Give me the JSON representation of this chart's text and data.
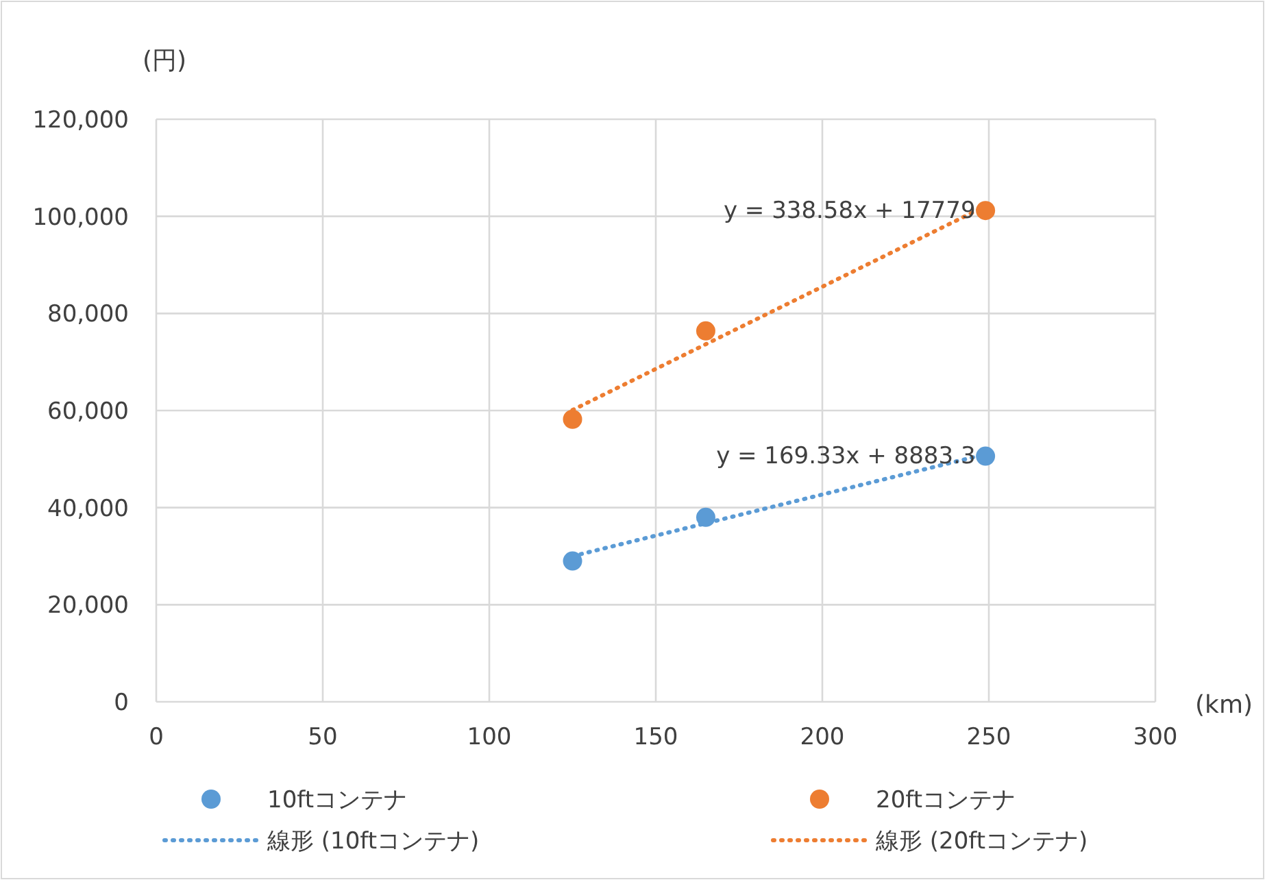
{
  "chart_data": {
    "type": "scatter",
    "xlabel": "(km)",
    "ylabel": "(円)",
    "xlim": [
      0,
      300
    ],
    "ylim": [
      0,
      120000
    ],
    "xticks": [
      0,
      50,
      100,
      150,
      200,
      250,
      300
    ],
    "yticks": [
      {
        "value": 0,
        "label": "0"
      },
      {
        "value": 20000,
        "label": "20,000"
      },
      {
        "value": 40000,
        "label": "40,000"
      },
      {
        "value": 60000,
        "label": "60,000"
      },
      {
        "value": 80000,
        "label": "80,000"
      },
      {
        "value": 100000,
        "label": "100,000"
      },
      {
        "value": 120000,
        "label": "120,000"
      }
    ],
    "grid": true,
    "legend": "bottom",
    "series": [
      {
        "name": "10ftコンテナ",
        "marker": "circle",
        "color": "#5b9bd5",
        "x": [
          125,
          165,
          249
        ],
        "values": [
          29000,
          38000,
          50600
        ]
      },
      {
        "name": "20ftコンテナ",
        "marker": "circle",
        "color": "#ed7d31",
        "x": [
          125,
          165,
          249
        ],
        "values": [
          58200,
          76400,
          101200
        ]
      },
      {
        "name": "線形 (10ftコンテナ)",
        "type": "line",
        "line_style": "dotted",
        "color": "#5b9bd5",
        "x": [
          125,
          249
        ],
        "values": [
          30000,
          51000
        ]
      },
      {
        "name": "線形 (20ftコンテナ)",
        "type": "line",
        "line_style": "dotted",
        "color": "#ed7d31",
        "x": [
          125,
          249
        ],
        "values": [
          60100,
          102100
        ]
      }
    ],
    "annotations": [
      {
        "text": "y = 338.58x + 17779",
        "x": 246,
        "y": 101400
      },
      {
        "text": "y = 169.33x + 8883.3",
        "x": 246,
        "y": 50800
      }
    ]
  }
}
